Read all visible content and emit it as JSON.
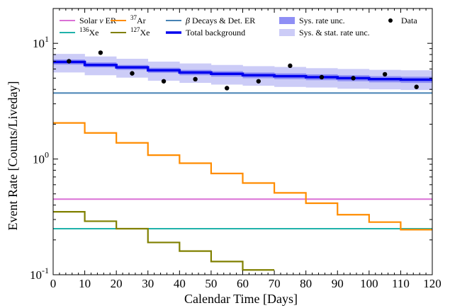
{
  "chart_data": {
    "type": "line",
    "xlabel": "Calendar Time [Days]",
    "ylabel": "Event Rate [Counts/Liveday]",
    "yscale": "log",
    "xlim": [
      0,
      120
    ],
    "ylim": [
      0.1,
      20
    ],
    "x_ticks": [
      0,
      10,
      20,
      30,
      40,
      50,
      60,
      70,
      80,
      90,
      100,
      110,
      120
    ],
    "y_ticks": [
      {
        "value": 0.1,
        "base": "10",
        "exp": "-1"
      },
      {
        "value": 1,
        "base": "10",
        "exp": "0"
      },
      {
        "value": 10,
        "base": "10",
        "exp": "1"
      }
    ],
    "legend_position": "top",
    "series": [
      {
        "name": "Solar ν ER",
        "name_parts": [
          "Solar ",
          "ν",
          " ER"
        ],
        "color": "#da70d6",
        "kind": "hline",
        "value": 0.45
      },
      {
        "name": "136Xe",
        "name_parts": [
          "136",
          "Xe"
        ],
        "color": "#20b2aa",
        "kind": "hline",
        "value": 0.25
      },
      {
        "name": "37Ar",
        "name_parts": [
          "37",
          "Ar"
        ],
        "color": "#ff8c00",
        "kind": "step",
        "bin_edges": [
          0,
          10,
          20,
          30,
          40,
          50,
          60,
          70,
          80,
          90,
          100,
          110,
          120
        ],
        "values": [
          2.05,
          1.68,
          1.38,
          1.08,
          0.92,
          0.75,
          0.62,
          0.51,
          0.415,
          0.33,
          0.285,
          0.245
        ]
      },
      {
        "name": "127Xe",
        "name_parts": [
          "127",
          "Xe"
        ],
        "color": "#808000",
        "kind": "step",
        "bin_edges": [
          0,
          10,
          20,
          30,
          40,
          50,
          60,
          70
        ],
        "values": [
          0.35,
          0.29,
          0.25,
          0.19,
          0.16,
          0.13,
          0.11
        ]
      },
      {
        "name": "β Decays & Det. ER",
        "name_parts": [
          "β",
          " Decays & Det. ER"
        ],
        "color": "#4682b4",
        "kind": "hline",
        "value": 3.72
      },
      {
        "name": "Total background",
        "color": "#0000ee",
        "kind": "step",
        "bin_edges": [
          0,
          10,
          20,
          30,
          40,
          50,
          60,
          70,
          80,
          90,
          100,
          110,
          120
        ],
        "values": [
          6.9,
          6.5,
          6.2,
          5.85,
          5.6,
          5.45,
          5.3,
          5.2,
          5.1,
          5.0,
          4.9,
          4.85
        ]
      },
      {
        "name": "Sys. rate unc.",
        "color": "#8f8ff5",
        "kind": "band",
        "bin_edges": [
          0,
          10,
          20,
          30,
          40,
          50,
          60,
          70,
          80,
          90,
          100,
          110,
          120
        ],
        "lower": [
          6.55,
          6.2,
          5.9,
          5.55,
          5.3,
          5.15,
          5.0,
          4.9,
          4.8,
          4.7,
          4.6,
          4.55
        ],
        "upper": [
          7.25,
          6.85,
          6.5,
          6.15,
          5.9,
          5.75,
          5.6,
          5.5,
          5.4,
          5.3,
          5.2,
          5.15
        ]
      },
      {
        "name": "Sys. & stat. rate unc.",
        "color": "#ccccf7",
        "kind": "band",
        "bin_edges": [
          0,
          10,
          20,
          30,
          40,
          50,
          60,
          70,
          80,
          90,
          100,
          110,
          120
        ],
        "lower": [
          5.6,
          5.3,
          5.05,
          4.75,
          4.55,
          4.4,
          4.3,
          4.2,
          4.15,
          4.05,
          4.0,
          3.95
        ],
        "upper": [
          8.1,
          7.7,
          7.35,
          6.95,
          6.7,
          6.5,
          6.35,
          6.25,
          6.1,
          6.0,
          5.9,
          5.85
        ]
      },
      {
        "name": "Data",
        "color": "#000000",
        "kind": "scatter",
        "x": [
          5,
          15,
          25,
          35,
          45,
          55,
          65,
          75,
          85,
          95,
          105,
          115
        ],
        "y": [
          7.0,
          8.3,
          5.5,
          4.7,
          4.9,
          4.1,
          4.7,
          6.4,
          5.1,
          5.0,
          5.4,
          4.2
        ]
      }
    ],
    "legend": [
      {
        "ref": 0,
        "marker": "line"
      },
      {
        "ref": 4,
        "marker": "line"
      },
      {
        "ref": 6,
        "marker": "patch"
      },
      {
        "ref": 8,
        "marker": "dot"
      },
      {
        "ref": 1,
        "marker": "line"
      },
      {
        "ref": 2,
        "marker": "line"
      },
      {
        "ref": 3,
        "marker": "line"
      },
      {
        "ref": 5,
        "marker": "line"
      },
      {
        "ref": 7,
        "marker": "patch"
      }
    ]
  }
}
